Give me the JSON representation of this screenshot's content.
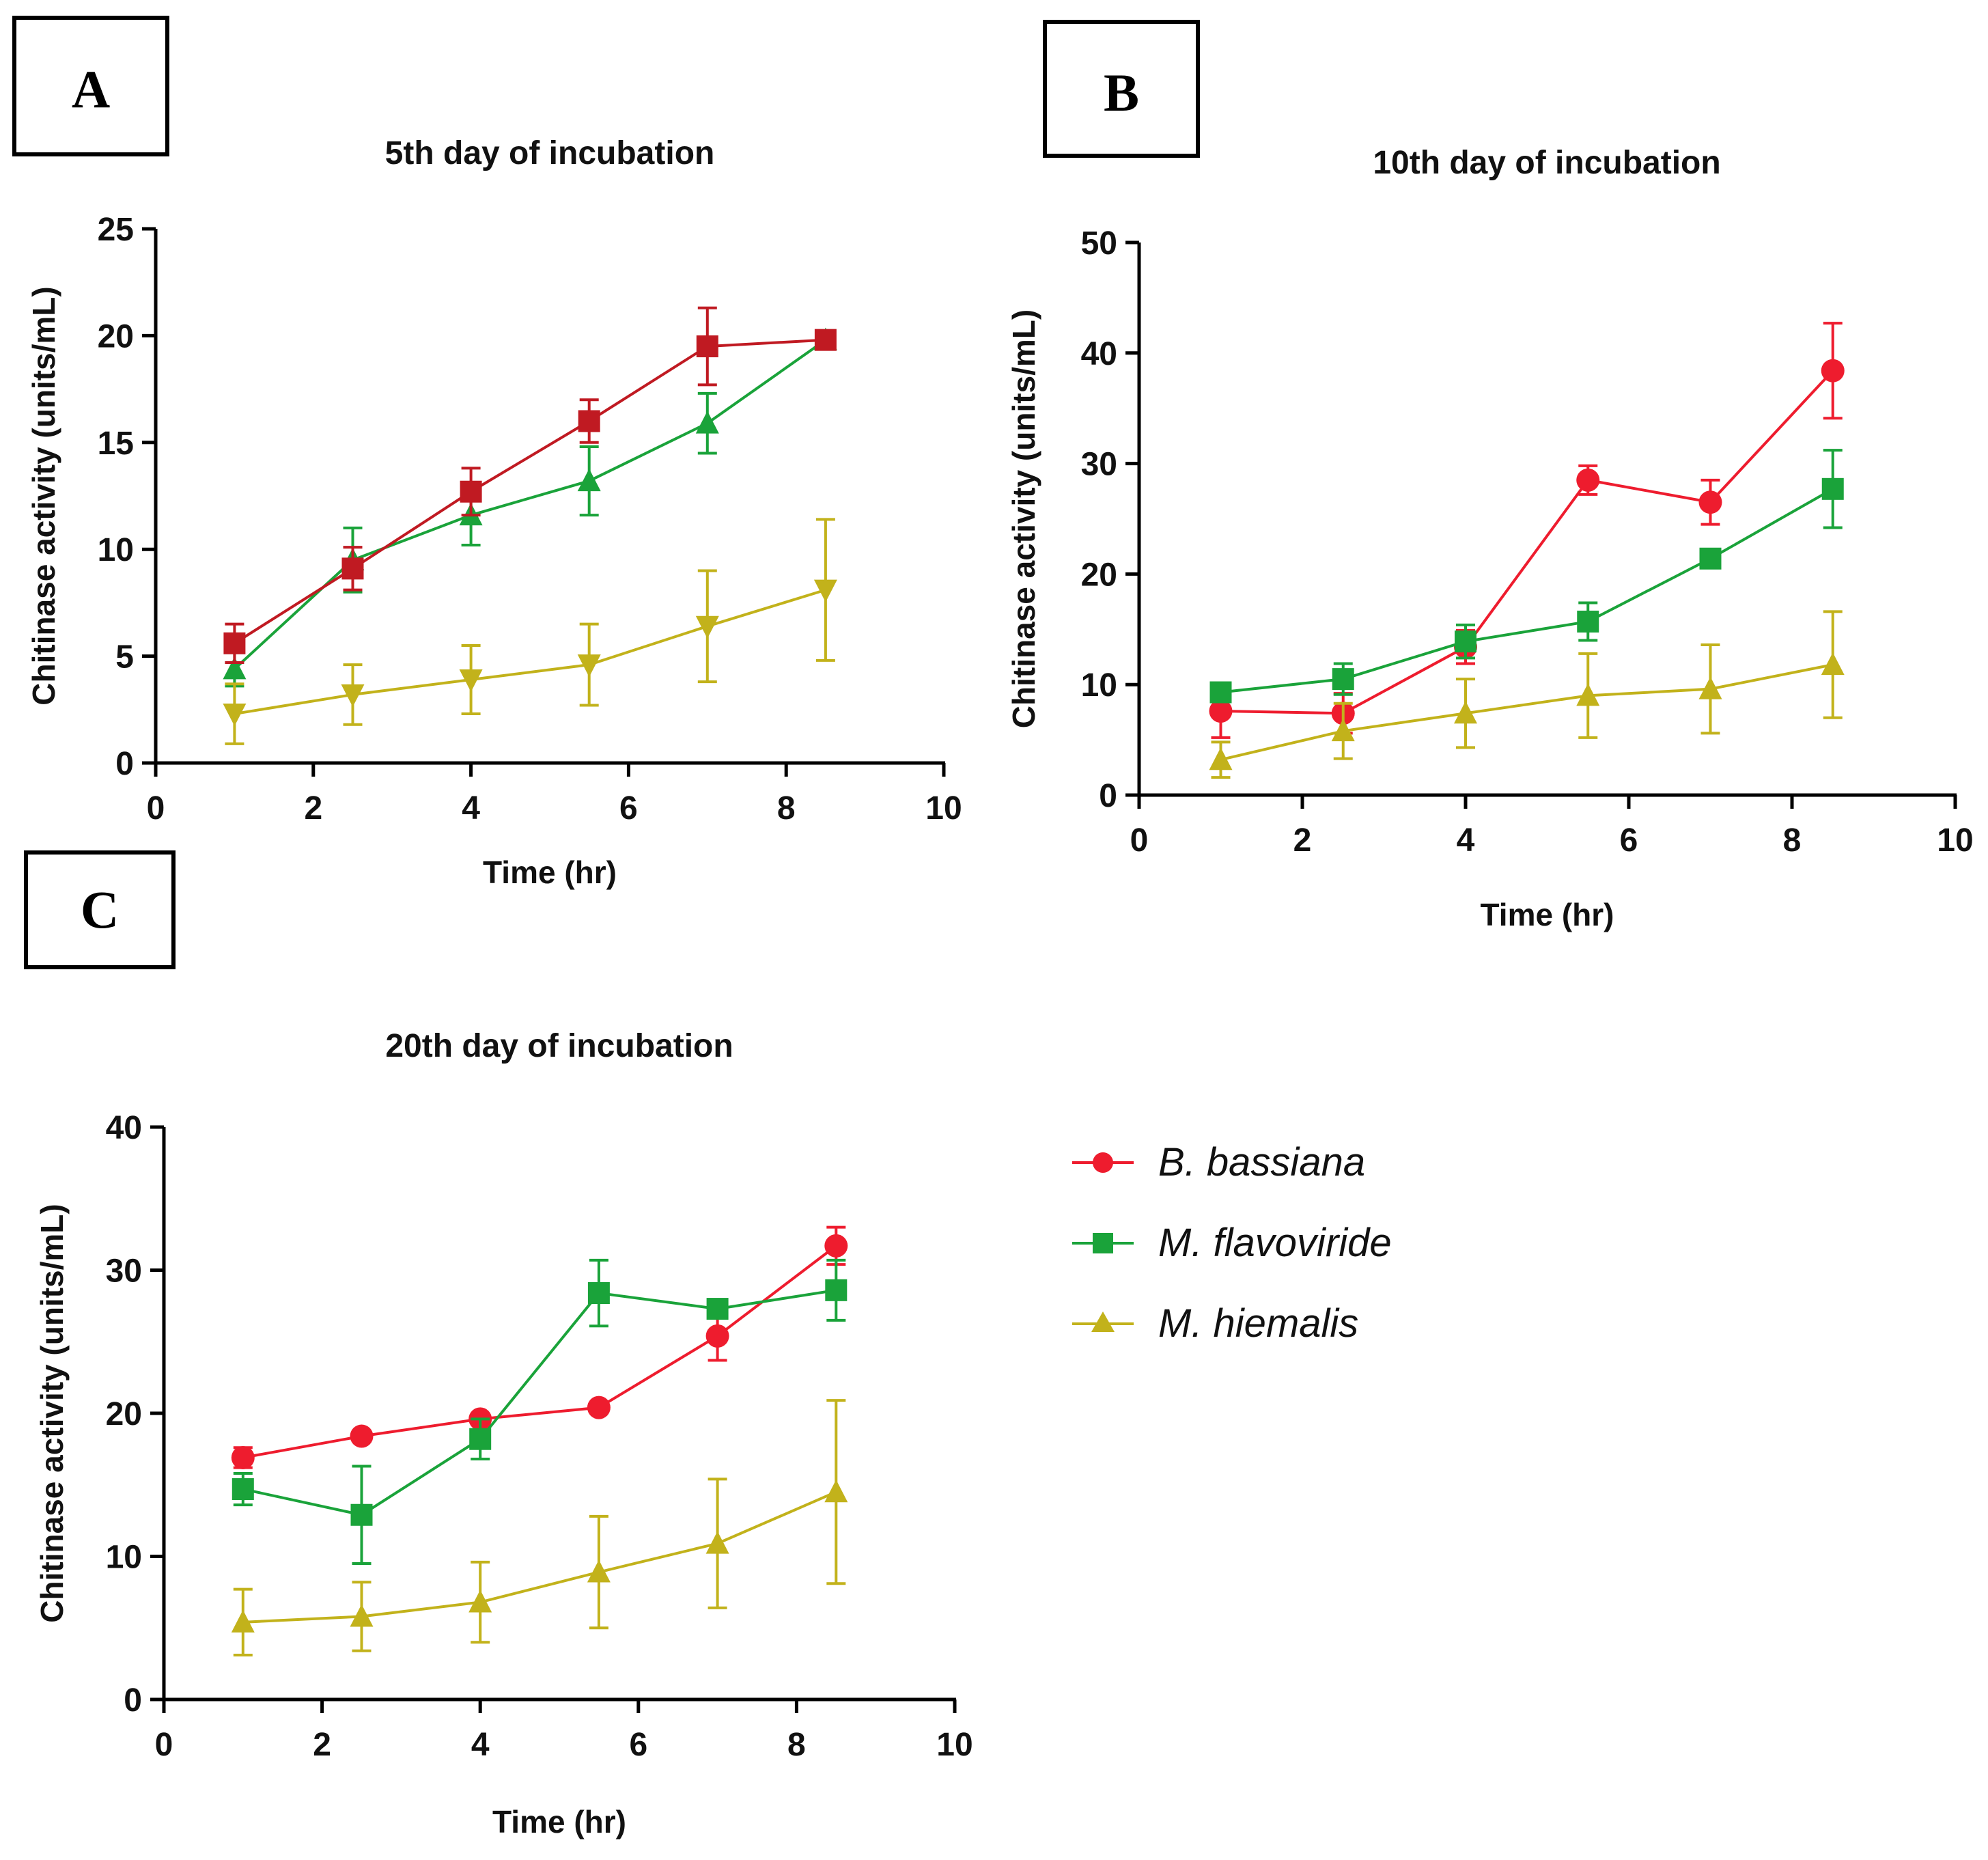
{
  "panel_labels": [
    "A",
    "B",
    "C"
  ],
  "legend": [
    {
      "name": "B. bassiana",
      "color": "#ee1c2e",
      "marker": "circle"
    },
    {
      "name": "M. flavoviride",
      "color": "#1aa33a",
      "marker": "square"
    },
    {
      "name": "M. hiemalis",
      "color": "#c2b21b",
      "marker": "triangle-up"
    }
  ],
  "chart_data": [
    {
      "type": "line",
      "panel": "A",
      "title": "5th day of incubation",
      "xlabel": "Time (hr)",
      "ylabel": "Chitinase activity (units/mL)",
      "xlim": [
        0,
        10
      ],
      "ylim": [
        0,
        25
      ],
      "xticks": [
        "0",
        "2",
        "4",
        "6",
        "8",
        "10"
      ],
      "yticks": [
        "0",
        "5",
        "10",
        "15",
        "20",
        "25"
      ],
      "x": [
        1,
        2.5,
        4,
        5.5,
        7,
        8.5
      ],
      "series": [
        {
          "name": "M. flavoviride",
          "color": "#1aa33a",
          "marker": "triangle-up",
          "values": [
            4.4,
            9.5,
            11.6,
            13.2,
            15.9,
            19.8
          ],
          "errors": [
            0.8,
            1.5,
            1.4,
            1.6,
            1.4,
            0
          ]
        },
        {
          "name": "B. bassiana",
          "color": "#c01a22",
          "marker": "square",
          "values": [
            5.6,
            9.1,
            12.7,
            16.0,
            19.5,
            19.8
          ],
          "errors": [
            0.9,
            1.0,
            1.1,
            1.0,
            1.8,
            0
          ]
        },
        {
          "name": "M. hiemalis",
          "color": "#c2b21b",
          "marker": "triangle-down",
          "values": [
            2.3,
            3.2,
            3.9,
            4.6,
            6.4,
            8.1
          ],
          "errors": [
            1.4,
            1.4,
            1.6,
            1.9,
            2.6,
            3.3
          ]
        }
      ]
    },
    {
      "type": "line",
      "panel": "B",
      "title": "10th day of incubation",
      "xlabel": "Time (hr)",
      "ylabel": "Chitinase activity (units/mL)",
      "xlim": [
        0,
        10
      ],
      "ylim": [
        0,
        50
      ],
      "xticks": [
        "0",
        "2",
        "4",
        "6",
        "8",
        "10"
      ],
      "yticks": [
        "0",
        "10",
        "20",
        "30",
        "40",
        "50"
      ],
      "x": [
        1,
        2.5,
        4,
        5.5,
        7,
        8.5
      ],
      "series": [
        {
          "name": "B. bassiana",
          "color": "#ee1c2e",
          "marker": "circle",
          "values": [
            7.6,
            7.4,
            13.4,
            28.5,
            26.5,
            38.4
          ],
          "errors": [
            2.4,
            1.8,
            1.5,
            1.3,
            2.0,
            4.3
          ]
        },
        {
          "name": "M. flavoviride",
          "color": "#1aa33a",
          "marker": "square",
          "values": [
            9.3,
            10.5,
            13.9,
            15.7,
            21.4,
            27.7
          ],
          "errors": [
            0.8,
            1.4,
            1.5,
            1.7,
            0.6,
            3.5
          ]
        },
        {
          "name": "M. hiemalis",
          "color": "#c2b21b",
          "marker": "triangle-up",
          "values": [
            3.2,
            5.8,
            7.4,
            9.0,
            9.6,
            11.8
          ],
          "errors": [
            1.6,
            2.5,
            3.1,
            3.8,
            4.0,
            4.8
          ]
        }
      ]
    },
    {
      "type": "line",
      "panel": "C",
      "title": "20th day of incubation",
      "xlabel": "Time (hr)",
      "ylabel": "Chitinase activity (units/mL)",
      "xlim": [
        0,
        10
      ],
      "ylim": [
        0,
        40
      ],
      "xticks": [
        "0",
        "2",
        "4",
        "6",
        "8",
        "10"
      ],
      "yticks": [
        "0",
        "10",
        "20",
        "30",
        "40"
      ],
      "x": [
        1,
        2.5,
        4,
        5.5,
        7,
        8.5
      ],
      "series": [
        {
          "name": "B. bassiana",
          "color": "#ee1c2e",
          "marker": "circle",
          "values": [
            16.9,
            18.4,
            19.6,
            20.4,
            25.4,
            31.7
          ],
          "errors": [
            0.7,
            0,
            0,
            0,
            1.7,
            1.3
          ]
        },
        {
          "name": "M. flavoviride",
          "color": "#1aa33a",
          "marker": "square",
          "values": [
            14.7,
            12.9,
            18.2,
            28.4,
            27.3,
            28.6
          ],
          "errors": [
            1.1,
            3.4,
            1.4,
            2.3,
            0,
            2.1
          ]
        },
        {
          "name": "M. hiemalis",
          "color": "#c2b21b",
          "marker": "triangle-up",
          "values": [
            5.4,
            5.8,
            6.8,
            8.9,
            10.9,
            14.5
          ],
          "errors": [
            2.3,
            2.4,
            2.8,
            3.9,
            4.5,
            6.4
          ]
        }
      ]
    }
  ]
}
